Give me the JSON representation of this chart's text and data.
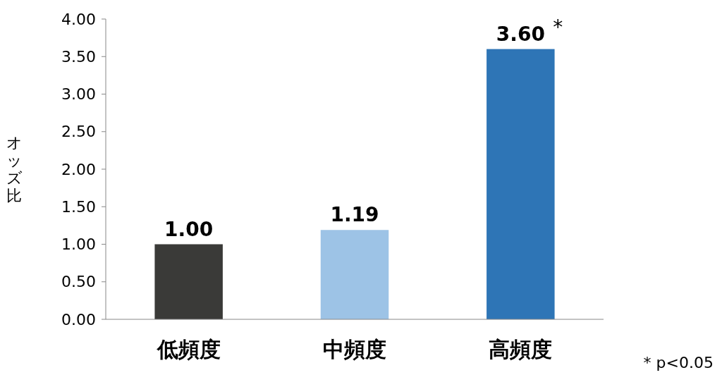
{
  "chart_data": {
    "type": "bar",
    "ylabel": "オッズ比",
    "categories": [
      "低頻度",
      "中頻度",
      "高頻度"
    ],
    "values": [
      1.0,
      1.19,
      3.6
    ],
    "colors": [
      "#3a3a38",
      "#9dc3e6",
      "#2e75b6"
    ],
    "value_labels": [
      "1.00",
      "1.19",
      "3.60"
    ],
    "ylim": [
      0,
      4
    ],
    "yticks": [
      {
        "value": 0,
        "label": "0.00"
      },
      {
        "value": 0.5,
        "label": "0.50"
      },
      {
        "value": 1,
        "label": "1.00"
      },
      {
        "value": 1.5,
        "label": "1.50"
      },
      {
        "value": 2,
        "label": "2.00"
      },
      {
        "value": 2.5,
        "label": "2.50"
      },
      {
        "value": 3,
        "label": "3.00"
      },
      {
        "value": 3.5,
        "label": "3.50"
      },
      {
        "value": 4,
        "label": "4.00"
      }
    ],
    "grid": false,
    "annotations": [
      {
        "text": "*",
        "x": "高頻度",
        "y": 3.6
      },
      "* p<0.05"
    ]
  }
}
